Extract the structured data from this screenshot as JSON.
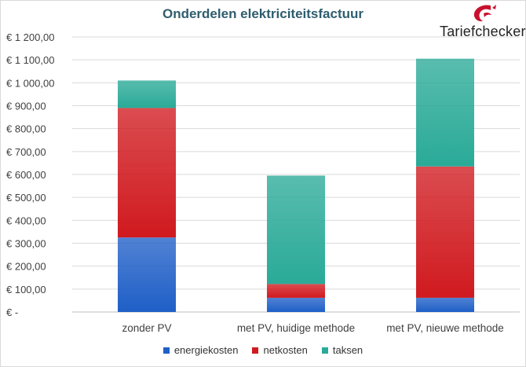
{
  "header": {
    "title": "Onderdelen elektriciteitsfactuur"
  },
  "logo": {
    "text": "Tariefchecker",
    "icon": "tariefchecker-swirl-icon",
    "color": "#c8102e"
  },
  "chart_data": {
    "type": "bar",
    "stacked": true,
    "categories": [
      "zonder PV",
      "met PV, huidige methode",
      "met PV, nieuwe methode"
    ],
    "series": [
      {
        "name": "energiekosten",
        "color": "#1f5fc7",
        "values": [
          325,
          62,
          62
        ]
      },
      {
        "name": "netkosten",
        "color": "#d01a1f",
        "values": [
          565,
          60,
          573
        ]
      },
      {
        "name": "taksen",
        "color": "#2aaa98",
        "values": [
          120,
          473,
          470
        ]
      }
    ],
    "ylim": [
      0,
      1200
    ],
    "yticks": [
      0,
      100,
      200,
      300,
      400,
      500,
      600,
      700,
      800,
      900,
      1000,
      1100,
      1200
    ],
    "ytick_labels": [
      "€ -",
      "€ 100,00",
      "€ 200,00",
      "€ 300,00",
      "€ 400,00",
      "€ 500,00",
      "€ 600,00",
      "€ 700,00",
      "€ 800,00",
      "€ 900,00",
      "€ 1 000,00",
      "€ 1 100,00",
      "€ 1 200,00"
    ],
    "grid": true,
    "legend": "bottom"
  }
}
